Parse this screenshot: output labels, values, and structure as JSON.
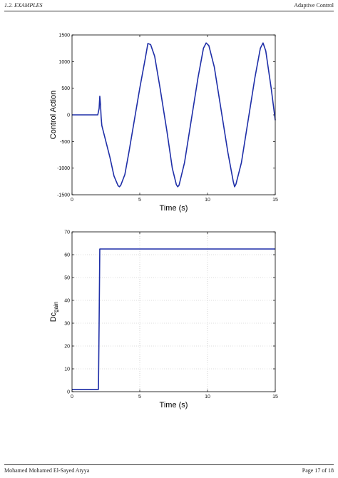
{
  "header": {
    "left": "1.2.  EXAMPLES",
    "right": "Adaptive Control"
  },
  "footer": {
    "left": "Mohamed Mohamed El-Sayed Atyya",
    "right": "Page 17 of 18"
  },
  "chart_data": [
    {
      "type": "line",
      "xlabel": "Time (s)",
      "ylabel": "Control Action",
      "xlim": [
        0,
        15
      ],
      "ylim": [
        -1500,
        1500
      ],
      "xticks": [
        0,
        5,
        10,
        15
      ],
      "yticks": [
        -1500,
        -1000,
        -500,
        0,
        500,
        1000,
        1500
      ],
      "grid": false,
      "line_color": "#1f2fa8",
      "series": [
        {
          "x": [
            0,
            1.9,
            2.0,
            2.05,
            2.1,
            2.15,
            2.2,
            2.3,
            2.5,
            2.8,
            3.1,
            3.4,
            3.5,
            3.6,
            3.9,
            4.2,
            4.6,
            5.0,
            5.4,
            5.6,
            5.8,
            6.1,
            6.5,
            7.0,
            7.4,
            7.7,
            7.8,
            7.9,
            8.3,
            8.8,
            9.3,
            9.7,
            9.9,
            10.1,
            10.5,
            11.0,
            11.5,
            11.9,
            12.0,
            12.1,
            12.5,
            13.0,
            13.5,
            13.9,
            14.1,
            14.3,
            14.7,
            15.0
          ],
          "y": [
            0,
            0,
            120,
            350,
            200,
            -50,
            -200,
            -300,
            -500,
            -800,
            -1150,
            -1330,
            -1350,
            -1320,
            -1120,
            -700,
            -100,
            500,
            1050,
            1340,
            1320,
            1100,
            500,
            -300,
            -1000,
            -1310,
            -1350,
            -1320,
            -900,
            -100,
            700,
            1250,
            1350,
            1300,
            900,
            100,
            -700,
            -1250,
            -1350,
            -1300,
            -900,
            -100,
            700,
            1250,
            1350,
            1200,
            500,
            -100
          ]
        }
      ]
    },
    {
      "type": "line",
      "xlabel": "Time (s)",
      "ylabel": "Dc",
      "ylabel_subscript": "gain",
      "xlim": [
        0,
        15
      ],
      "ylim": [
        0,
        70
      ],
      "xticks": [
        0,
        5,
        10,
        15
      ],
      "yticks": [
        0,
        10,
        20,
        30,
        40,
        50,
        60,
        70
      ],
      "grid": true,
      "line_color": "#1f2fa8",
      "series": [
        {
          "x": [
            0,
            1.95,
            2.0,
            2.05,
            15
          ],
          "y": [
            1,
            1,
            30,
            62.5,
            62.5
          ]
        }
      ]
    }
  ]
}
